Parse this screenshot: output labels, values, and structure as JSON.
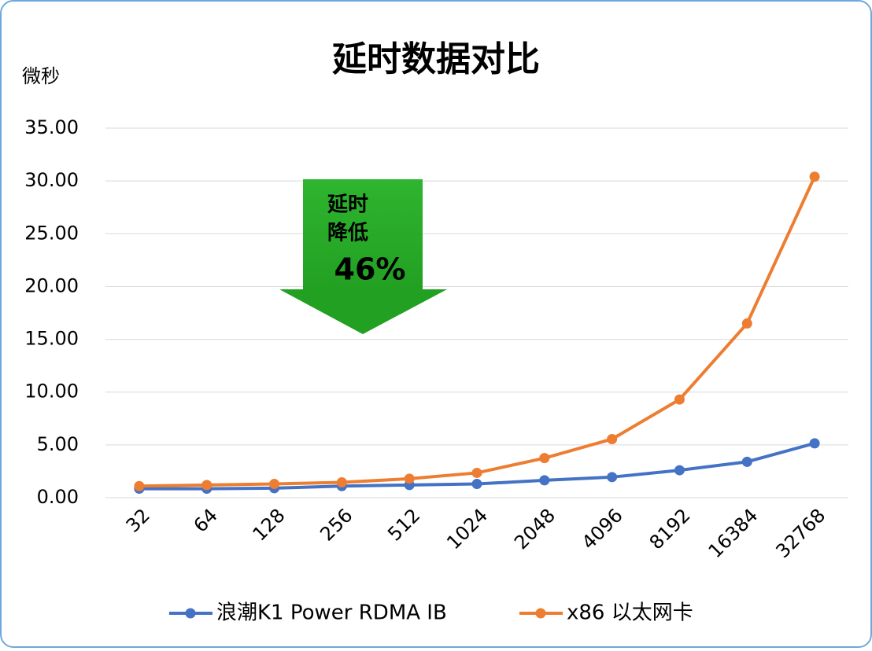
{
  "chart_data": {
    "type": "line",
    "title": "延时数据对比",
    "y_label": "微秒",
    "categories": [
      "32",
      "64",
      "128",
      "256",
      "512",
      "1024",
      "2048",
      "4096",
      "8192",
      "16384",
      "32768"
    ],
    "series": [
      {
        "name": "浪潮K1 Power RDMA IB",
        "color": "#4472c4",
        "values": [
          0.85,
          0.85,
          0.9,
          1.1,
          1.2,
          1.3,
          1.65,
          1.95,
          2.6,
          3.4,
          5.15
        ]
      },
      {
        "name": "x86 以太网卡",
        "color": "#ed7d31",
        "values": [
          1.1,
          1.2,
          1.3,
          1.45,
          1.8,
          2.35,
          3.75,
          5.55,
          9.3,
          16.5,
          30.4
        ]
      }
    ],
    "ylim": [
      0,
      35
    ],
    "yticks": [
      {
        "value": 0,
        "label": "0.00"
      },
      {
        "value": 5,
        "label": "5.00"
      },
      {
        "value": 10,
        "label": "10.00"
      },
      {
        "value": 15,
        "label": "15.00"
      },
      {
        "value": 20,
        "label": "20.00"
      },
      {
        "value": 25,
        "label": "25.00"
      },
      {
        "value": 30,
        "label": "30.00"
      },
      {
        "value": 35,
        "label": "35.00"
      }
    ],
    "grid": true,
    "legend": "bottom",
    "annotation": {
      "lines": [
        "延时",
        "降低"
      ],
      "highlight": "46%"
    }
  }
}
